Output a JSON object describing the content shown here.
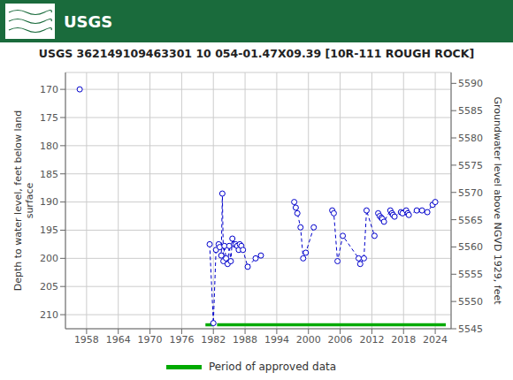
{
  "chart_data": {
    "type": "line",
    "title": "USGS 362149109463301 10 054-01.47X09.39 [10R-111 ROUGH ROCK]",
    "ylabel": "Depth to water level, feet below land\nsurface",
    "y2label": "Groundwater level above NGVD 1929, feet",
    "xlim": [
      1954,
      2027
    ],
    "xticks": [
      1958,
      1964,
      1970,
      1976,
      1982,
      1988,
      1994,
      2000,
      2006,
      2012,
      2018,
      2024
    ],
    "ylim": [
      212.5,
      167.0
    ],
    "yticks": [
      170,
      175,
      180,
      185,
      190,
      195,
      200,
      205,
      210
    ],
    "y2lim": [
      5545,
      5592
    ],
    "y2ticks": [
      5545,
      5550,
      5555,
      5560,
      5565,
      5570,
      5575,
      5580,
      5585,
      5590
    ],
    "grid": true,
    "annotations": [
      {
        "text": "USGS",
        "color": "#1a6b3c"
      }
    ],
    "series": [
      {
        "type": "line",
        "color": "#0000cc",
        "line_style": "dashed",
        "marker": "circle",
        "x": [
          1956.7
        ],
        "values": [
          170.0
        ]
      },
      {
        "type": "line",
        "color": "#0000cc",
        "line_style": "dashed",
        "marker": "circle",
        "x": [
          1981.3,
          1982.0,
          1982.5,
          1983.0,
          1983.2,
          1983.5,
          1983.7,
          1983.9,
          1984.1,
          1984.4,
          1984.7,
          1985.0,
          1985.3,
          1985.6,
          1985.9,
          1986.2,
          1986.5,
          1986.8,
          1987.0,
          1987.3,
          1987.6,
          1988.5,
          1990.0,
          1991.0
        ],
        "values": [
          197.5,
          211.5,
          198.5,
          197.5,
          198.0,
          199.5,
          188.5,
          200.5,
          197.8,
          200.0,
          201.0,
          197.8,
          200.5,
          196.5,
          197.5,
          197.5,
          197.8,
          198.5,
          197.5,
          197.8,
          198.5,
          201.5,
          200.0,
          199.5
        ]
      },
      {
        "type": "line",
        "color": "#0000cc",
        "line_style": "dashed",
        "marker": "circle",
        "x": [
          1997.3,
          1997.6,
          1997.9,
          1998.5,
          1999.0,
          1999.5,
          2001.0
        ],
        "values": [
          190.0,
          191.0,
          192.0,
          194.5,
          200.0,
          199.0,
          194.5
        ]
      },
      {
        "type": "line",
        "color": "#0000cc",
        "line_style": "dashed",
        "marker": "circle",
        "x": [
          2004.5,
          2004.8,
          2005.5,
          2006.5,
          2009.5,
          2009.8,
          2010.5,
          2011.0,
          2012.5
        ],
        "values": [
          191.5,
          192.0,
          200.5,
          196.0,
          200.0,
          201.0,
          200.0,
          191.5,
          196.0
        ]
      },
      {
        "type": "line",
        "color": "#0000cc",
        "line_style": "dashed",
        "marker": "circle",
        "x": [
          2013.2,
          2013.5,
          2013.8,
          2014.0,
          2014.3,
          2015.5,
          2015.8,
          2016.0,
          2016.3,
          2017.5,
          2017.8,
          2018.5,
          2018.8,
          2019.0,
          2020.5,
          2021.5,
          2022.5,
          2023.5,
          2024.0
        ],
        "values": [
          192.0,
          192.5,
          192.8,
          193.0,
          193.5,
          191.5,
          192.0,
          192.3,
          192.6,
          191.8,
          192.0,
          191.5,
          192.0,
          192.3,
          191.5,
          191.5,
          191.8,
          190.5,
          190.0
        ]
      },
      {
        "type": "segments",
        "name": "Period of approved data",
        "color": "#00aa00",
        "x_segments": [
          [
            1980.5,
            1982.0
          ],
          [
            1982.7,
            2026.0
          ]
        ],
        "y": 211.8
      }
    ]
  }
}
